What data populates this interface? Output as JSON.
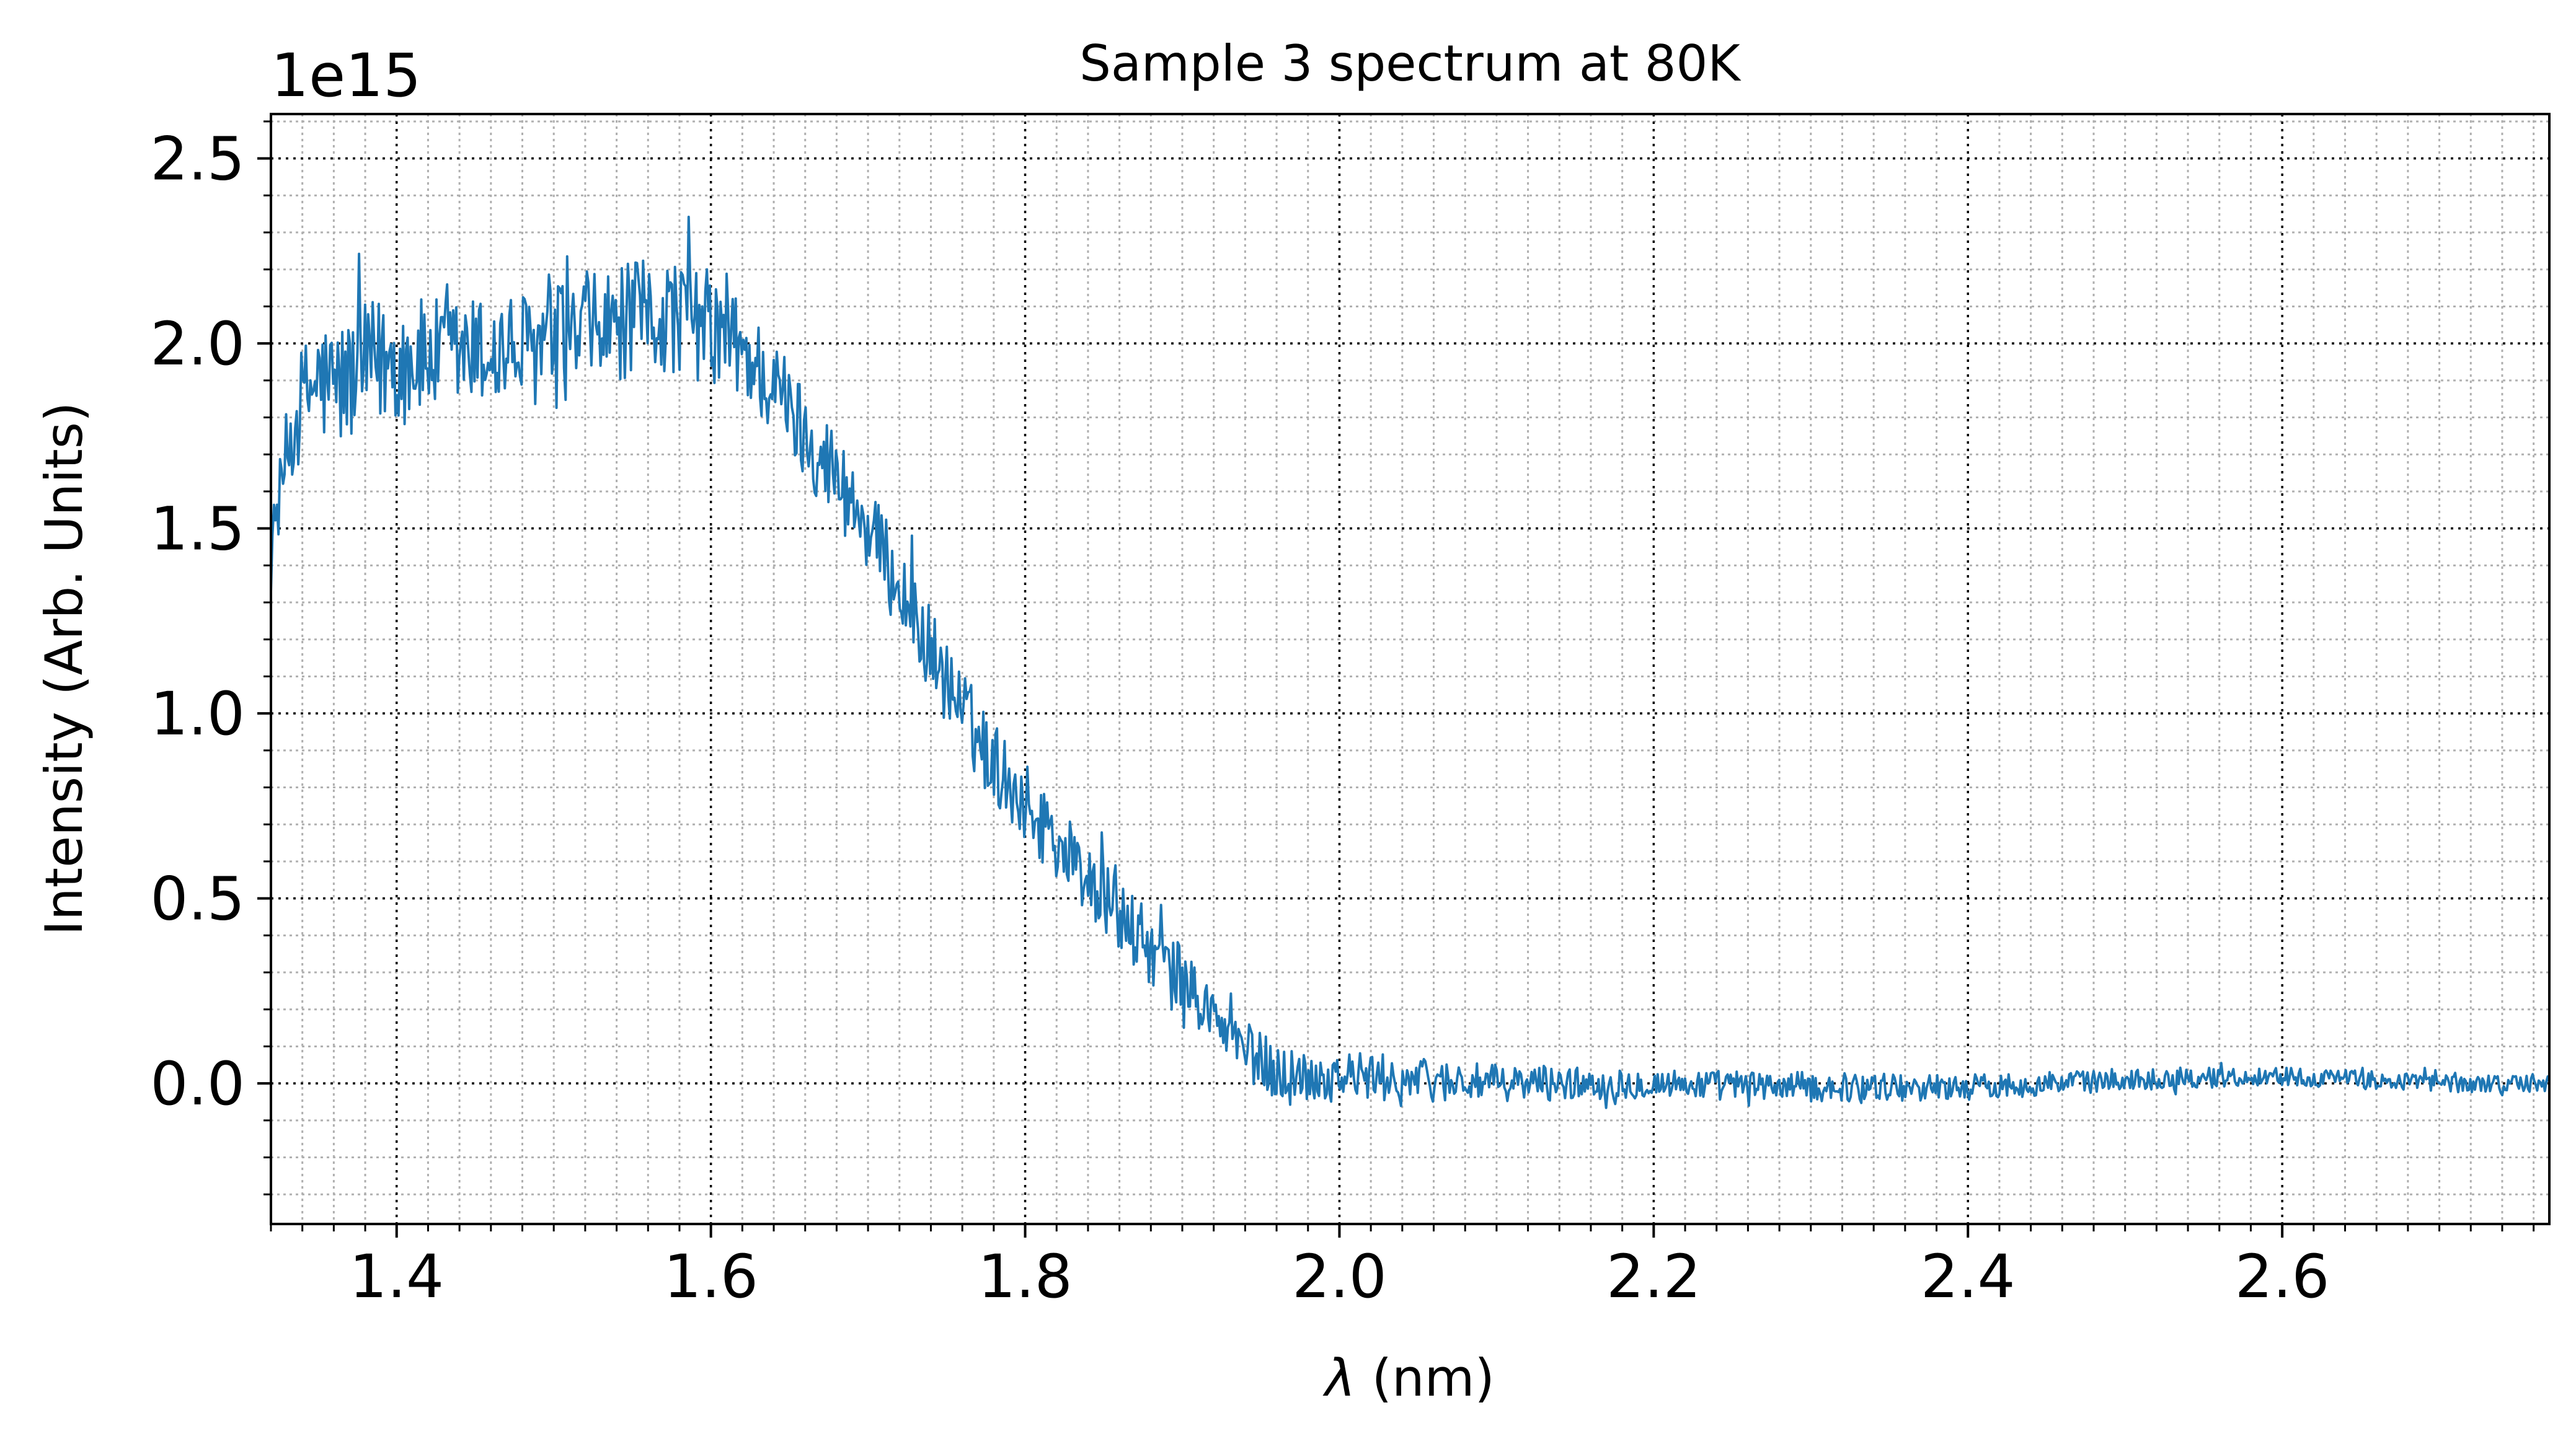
{
  "chart_data": {
    "type": "line",
    "title": "Sample 3 spectrum at 80K",
    "xlabel_symbol": "λ",
    "xlabel_unit": " (nm)",
    "ylabel": "Intensity (Arb. Units)",
    "y_offset_text": "1e15",
    "y_scale": 1000000000000000.0,
    "xlim": [
      1.32,
      2.77
    ],
    "ylim": [
      -0.38,
      2.62
    ],
    "x_ticks": [
      1.4,
      1.6,
      1.8,
      2.0,
      2.2,
      2.4,
      2.6
    ],
    "x_tick_labels": [
      "1.4",
      "1.6",
      "1.8",
      "2.0",
      "2.2",
      "2.4",
      "2.6"
    ],
    "y_ticks": [
      0.0,
      0.5,
      1.0,
      1.5,
      2.0,
      2.5
    ],
    "y_tick_labels": [
      "0.0",
      "0.5",
      "1.0",
      "1.5",
      "2.0",
      "2.5"
    ],
    "x_minor_step": 0.02,
    "y_minor_step": 0.1,
    "grid": true,
    "grid_major_color": "#000000",
    "grid_minor_color": "#b0b0b0",
    "series": [
      {
        "color": "#1f77b4",
        "x": [
          1.32,
          1.33,
          1.34,
          1.35,
          1.36,
          1.37,
          1.38,
          1.39,
          1.4,
          1.42,
          1.44,
          1.46,
          1.48,
          1.5,
          1.52,
          1.54,
          1.56,
          1.58,
          1.6,
          1.62,
          1.64,
          1.66,
          1.68,
          1.7,
          1.72,
          1.74,
          1.76,
          1.78,
          1.8,
          1.82,
          1.84,
          1.86,
          1.88,
          1.9,
          1.92,
          1.94,
          1.96,
          1.98,
          2.0,
          2.05,
          2.1,
          2.2,
          2.3,
          2.4,
          2.5,
          2.6,
          2.7,
          2.77
        ],
        "y": [
          1.45,
          1.7,
          1.85,
          1.9,
          1.88,
          1.9,
          1.93,
          1.95,
          1.95,
          1.96,
          1.97,
          1.97,
          1.98,
          2.0,
          2.02,
          2.05,
          2.07,
          2.08,
          2.04,
          1.98,
          1.88,
          1.76,
          1.64,
          1.5,
          1.34,
          1.17,
          1.0,
          0.87,
          0.76,
          0.66,
          0.55,
          0.45,
          0.36,
          0.28,
          0.18,
          0.09,
          0.03,
          0.02,
          0.02,
          0.01,
          0.0,
          0.0,
          -0.01,
          -0.01,
          0.01,
          0.02,
          0.0,
          0.0
        ],
        "noise": [
          0.07,
          0.12,
          0.15,
          0.17,
          0.18,
          0.18,
          0.18,
          0.18,
          0.18,
          0.16,
          0.16,
          0.16,
          0.16,
          0.16,
          0.16,
          0.16,
          0.16,
          0.16,
          0.16,
          0.14,
          0.14,
          0.13,
          0.13,
          0.12,
          0.12,
          0.12,
          0.12,
          0.11,
          0.11,
          0.11,
          0.1,
          0.1,
          0.1,
          0.09,
          0.08,
          0.08,
          0.08,
          0.07,
          0.07,
          0.06,
          0.05,
          0.04,
          0.04,
          0.035,
          0.03,
          0.025,
          0.025,
          0.025
        ]
      }
    ]
  }
}
